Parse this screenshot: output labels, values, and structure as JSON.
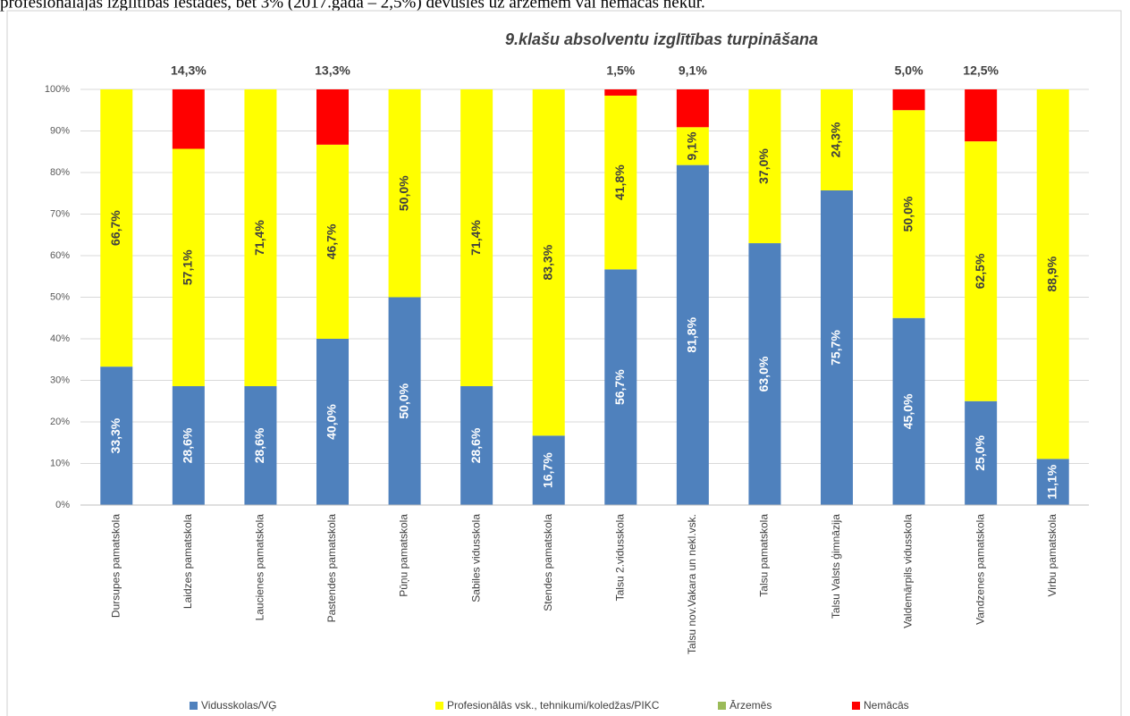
{
  "caption": "profesionālajās izglītības iestādēs, bet 3% (2017.gadā – 2,5%) devušies uz ārzemēm vai nemācās nekur.",
  "chart_data": {
    "type": "stacked_bar",
    "title": "9.klašu absolventu izglītības turpināšana",
    "categories": [
      "Dursupes pamatskola",
      "Laidzes pamatskola",
      "Laucienes pamatskola",
      "Pastendes pamatskola",
      "Pūņu pamatskola",
      "Sabiles vidusskola",
      "Stendes pamatskola",
      "Talsu 2.vidusskola",
      "Talsu nov.Vakara un nekl.vsk.",
      "Talsu pamatskola",
      "Talsu Valsts ģimnāzija",
      "Valdemārpils vidusskola",
      "Vandzenes pamatskola",
      "Virbu pamatskola"
    ],
    "series": [
      {
        "name": "Vidusskolas/VĢ",
        "color": "#4f81bd",
        "values": [
          33.3,
          28.6,
          28.6,
          40.0,
          50.0,
          28.6,
          16.7,
          56.7,
          81.8,
          63.0,
          75.7,
          45.0,
          25.0,
          11.1
        ],
        "value_labels": [
          "33,3%",
          "28,6%",
          "28,6%",
          "40,0%",
          "50,0%",
          "28,6%",
          "16,7%",
          "56,7%",
          "81,8%",
          "63,0%",
          "75,7%",
          "45,0%",
          "25,0%",
          "11,1%"
        ]
      },
      {
        "name": "Profesionālās vsk., tehnikumi/koledžas/PIKC",
        "color": "#ffff00",
        "values": [
          66.7,
          57.1,
          71.4,
          46.7,
          50.0,
          71.4,
          83.3,
          41.8,
          9.1,
          37.0,
          24.3,
          50.0,
          62.5,
          88.9
        ],
        "value_labels": [
          "66,7%",
          "57,1%",
          "71,4%",
          "46,7%",
          "50,0%",
          "71,4%",
          "83,3%",
          "41,8%",
          "9,1%",
          "37,0%",
          "24,3%",
          "50,0%",
          "62,5%",
          "88,9%"
        ]
      },
      {
        "name": "Ārzemēs",
        "color": "#9bbb59",
        "values": [
          0,
          0,
          0,
          0,
          0,
          0,
          0,
          0,
          0,
          0,
          0,
          0,
          0,
          0
        ],
        "value_labels": [
          null,
          null,
          null,
          null,
          null,
          null,
          null,
          null,
          null,
          null,
          null,
          null,
          null,
          null
        ]
      },
      {
        "name": "Nemācās",
        "color": "#ff0000",
        "values": [
          0,
          14.3,
          0,
          13.3,
          0,
          0,
          0,
          1.5,
          9.1,
          0,
          0,
          5.0,
          12.5,
          0
        ],
        "value_labels": [
          null,
          "14,3%",
          null,
          "13,3%",
          null,
          null,
          null,
          "1,5%",
          "9,1%",
          null,
          null,
          "5,0%",
          "12,5%",
          null
        ]
      }
    ],
    "ylim": [
      0,
      100
    ],
    "yticks": [
      {
        "value": 0,
        "label": "0%"
      },
      {
        "value": 10,
        "label": "10%"
      },
      {
        "value": 20,
        "label": "20%"
      },
      {
        "value": 30,
        "label": "30%"
      },
      {
        "value": 40,
        "label": "40%"
      },
      {
        "value": 50,
        "label": "50%"
      },
      {
        "value": 60,
        "label": "60%"
      },
      {
        "value": 70,
        "label": "70%"
      },
      {
        "value": 80,
        "label": "80%"
      },
      {
        "value": 90,
        "label": "90%"
      },
      {
        "value": 100,
        "label": "100%"
      }
    ],
    "grid": true,
    "legend": "bottom"
  }
}
